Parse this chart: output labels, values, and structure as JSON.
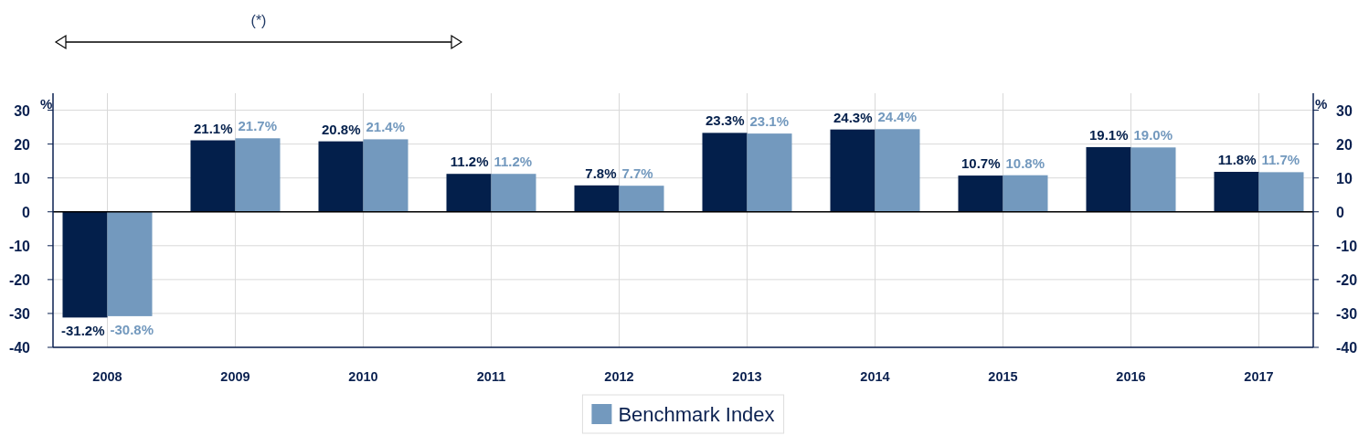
{
  "chart_data": {
    "type": "bar",
    "annotations": [
      "(*)"
    ],
    "ylabel": "%",
    "y2label": "%",
    "categories": [
      "2008",
      "2009",
      "2010",
      "2011",
      "2012",
      "2013",
      "2014",
      "2015",
      "2016",
      "2017"
    ],
    "series": [
      {
        "color": "#031f4b",
        "values": [
          -31.2,
          21.1,
          20.8,
          11.2,
          7.8,
          23.3,
          24.3,
          10.7,
          19.1,
          11.8
        ],
        "value_labels": [
          "-31.2%",
          "21.1%",
          "20.8%",
          "11.2%",
          "7.8%",
          "23.3%",
          "24.3%",
          "10.7%",
          "19.1%",
          "11.8%"
        ]
      },
      {
        "name": "Benchmark Index",
        "color": "#7399be",
        "values": [
          -30.8,
          21.7,
          21.4,
          11.2,
          7.7,
          23.1,
          24.4,
          10.8,
          19.0,
          11.7
        ],
        "value_labels": [
          "-30.8%",
          "21.7%",
          "21.4%",
          "11.2%",
          "7.7%",
          "23.1%",
          "24.4%",
          "10.8%",
          "19.0%",
          "11.7%"
        ]
      }
    ],
    "ylim": [
      -40,
      35
    ],
    "yticks": [
      -40,
      -30,
      -20,
      -10,
      0,
      10,
      20,
      30
    ],
    "y2lim": [
      -40,
      35
    ],
    "y2ticks": [
      -40,
      -30,
      -20,
      -10,
      0,
      10,
      20,
      30
    ],
    "grid": true,
    "legend": "bottom"
  }
}
